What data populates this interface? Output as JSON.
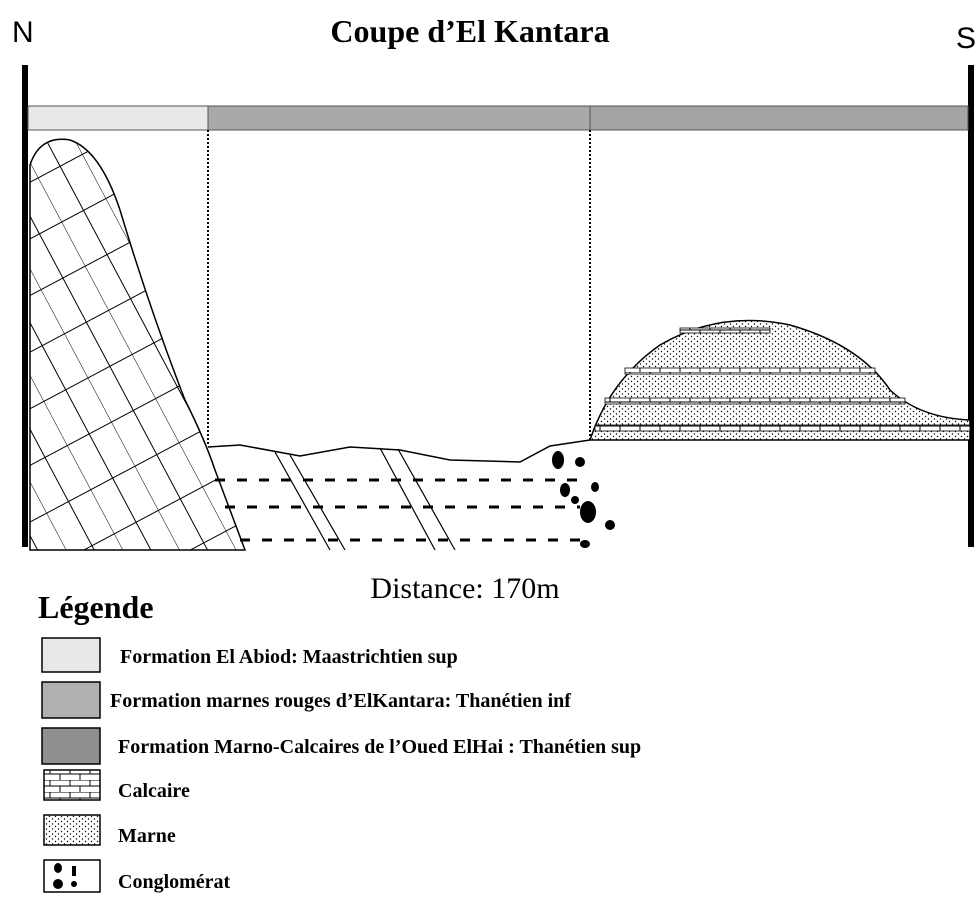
{
  "header": {
    "north": "N",
    "south": "S",
    "title": "Coupe d’El Kantara"
  },
  "scale": "Distance: 170m",
  "legend": {
    "title": "Légende",
    "items": [
      "Formation El Abiod: Maastrichtien sup",
      "Formation marnes rouges d’ElKantara: Thanétien inf",
      "Formation Marno-Calcaires de l’Oued ElHai : Thanétien sup",
      "Calcaire",
      "Marne",
      "Conglomérat"
    ]
  }
}
